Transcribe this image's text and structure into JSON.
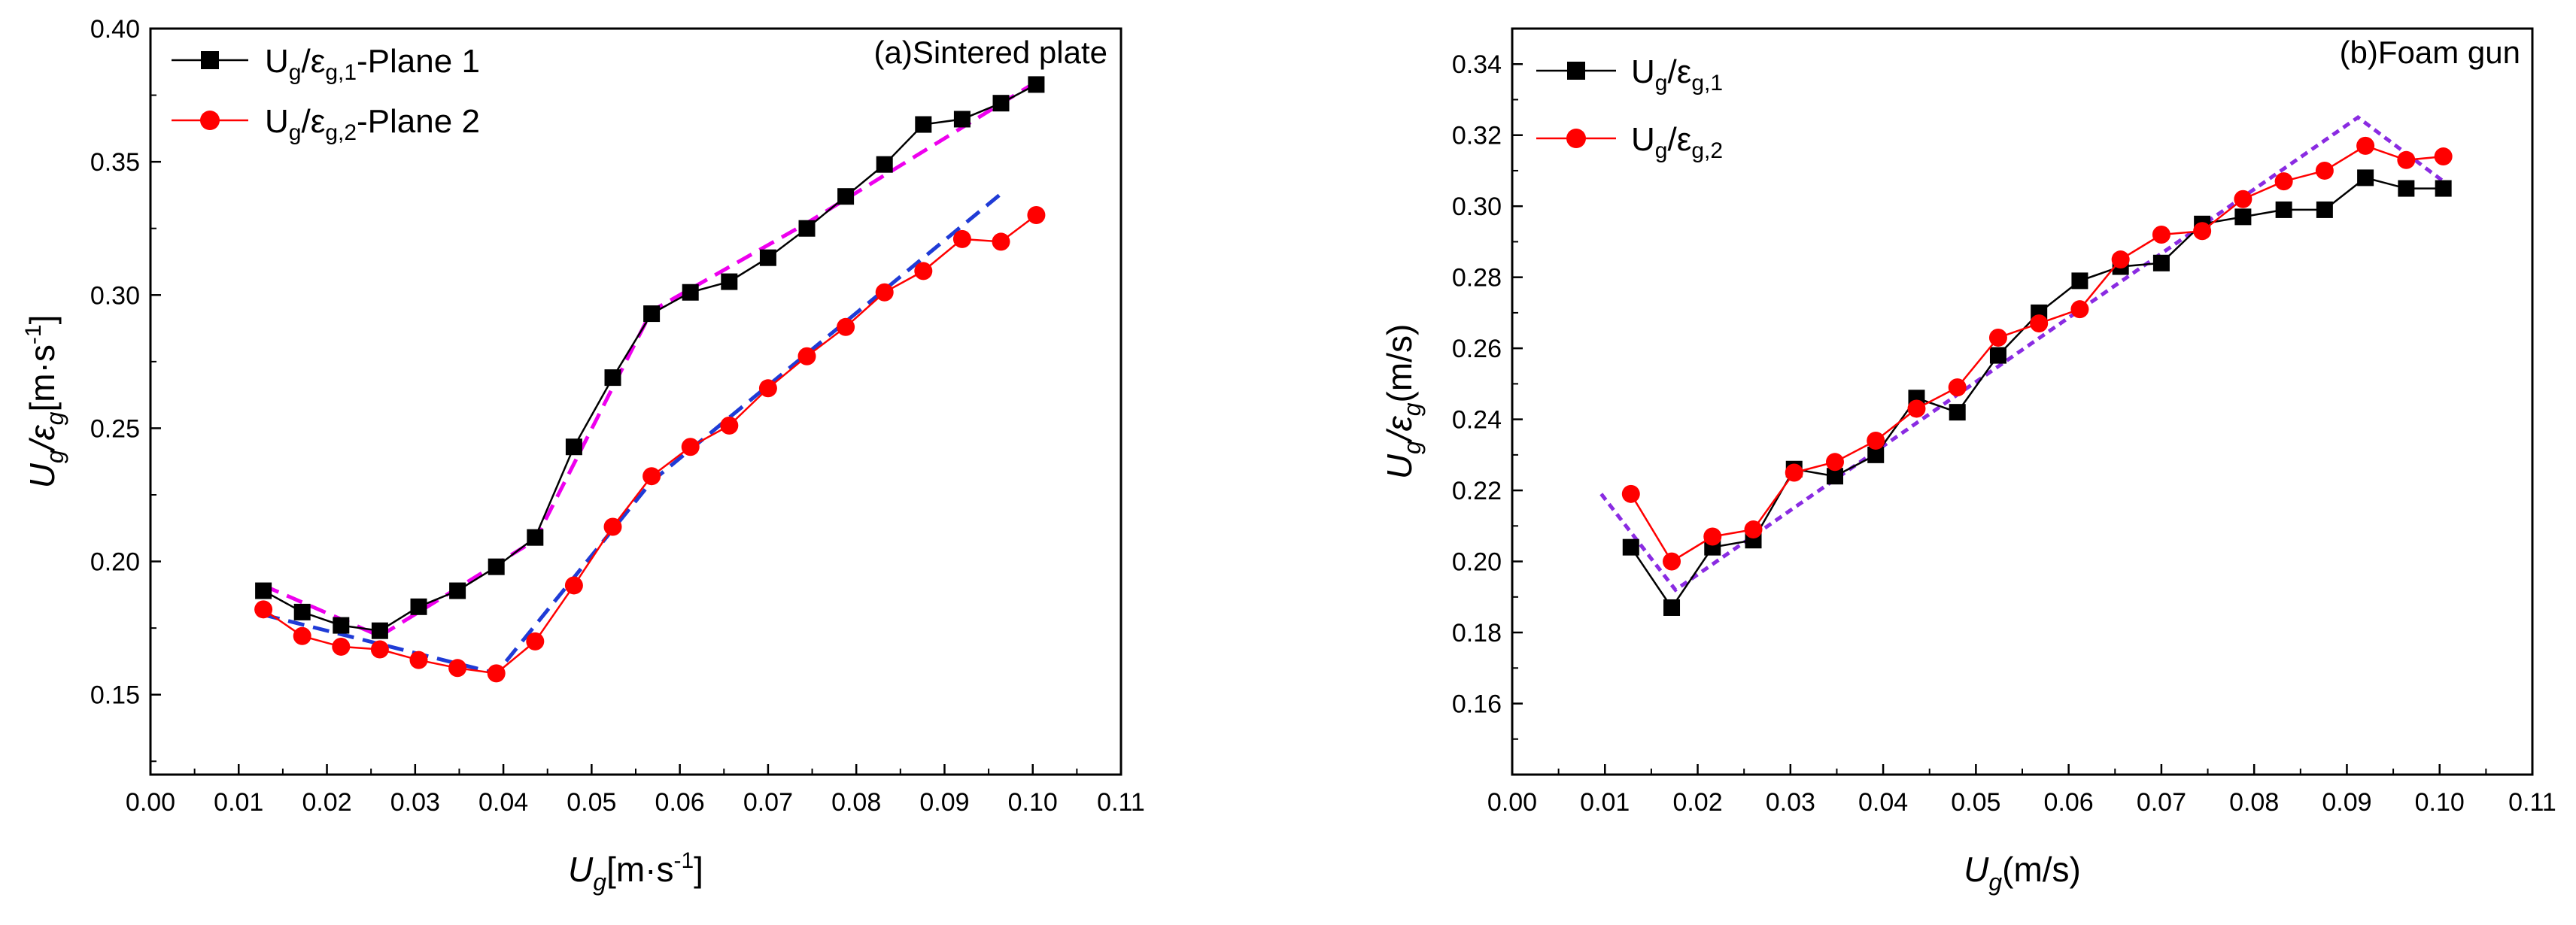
{
  "chart_data": [
    {
      "type": "line",
      "title": "(a)Sintered plate",
      "xlabel": "Ug[m·s⁻¹]",
      "ylabel": "Ug/εg[m·s⁻¹]",
      "xlim": [
        0.0,
        0.11
      ],
      "ylim": [
        0.12,
        0.4
      ],
      "xticks": [
        "0.00",
        "0.01",
        "0.02",
        "0.03",
        "0.04",
        "0.05",
        "0.06",
        "0.07",
        "0.08",
        "0.09",
        "0.10",
        "0.11"
      ],
      "yticks": [
        "0.15",
        "0.20",
        "0.25",
        "0.30",
        "0.35",
        "0.40"
      ],
      "legend_position": "top-left",
      "series": [
        {
          "name": "Ug/εg,1-Plane 1",
          "legend": {
            "main": "U",
            "sub1": "g",
            "mid": "/ε",
            "sub2": "g,1",
            "tail": "-Plane 1"
          },
          "color": "#000000",
          "marker": "square",
          "x": [
            0.0128,
            0.0172,
            0.0216,
            0.026,
            0.0304,
            0.0348,
            0.0392,
            0.0436,
            0.048,
            0.0524,
            0.0568,
            0.0612,
            0.0656,
            0.07,
            0.0744,
            0.0788,
            0.0832,
            0.0876,
            0.092,
            0.0964,
            0.1004
          ],
          "y": [
            0.189,
            0.181,
            0.176,
            0.174,
            0.183,
            0.189,
            0.198,
            0.209,
            0.243,
            0.269,
            0.293,
            0.301,
            0.305,
            0.314,
            0.325,
            0.337,
            0.349,
            0.364,
            0.366,
            0.372,
            0.379
          ]
        },
        {
          "name": "Ug/εg,2-Plane 2",
          "legend": {
            "main": "U",
            "sub1": "g",
            "mid": "/ε",
            "sub2": "g,2",
            "tail": "-Plane 2"
          },
          "color": "#ff0000",
          "marker": "circle",
          "x": [
            0.0128,
            0.0172,
            0.0216,
            0.026,
            0.0304,
            0.0348,
            0.0392,
            0.0436,
            0.048,
            0.0524,
            0.0568,
            0.0612,
            0.0656,
            0.07,
            0.0744,
            0.0788,
            0.0832,
            0.0876,
            0.092,
            0.0964,
            0.1004
          ],
          "y": [
            0.182,
            0.172,
            0.168,
            0.167,
            0.163,
            0.16,
            0.158,
            0.17,
            0.191,
            0.213,
            0.232,
            0.243,
            0.251,
            0.265,
            0.277,
            0.288,
            0.301,
            0.309,
            0.321,
            0.32,
            0.33
          ]
        }
      ],
      "fit_lines": [
        {
          "name": "fit-plane-1",
          "color": "#ee00ee",
          "points": [
            [
              0.0128,
              0.191
            ],
            [
              0.026,
              0.172
            ],
            [
              0.0436,
              0.208
            ],
            [
              0.0568,
              0.294
            ],
            [
              0.0744,
              0.327
            ],
            [
              0.1004,
              0.38
            ]
          ]
        },
        {
          "name": "fit-plane-2",
          "color": "#1f3bd6",
          "points": [
            [
              0.0128,
              0.18
            ],
            [
              0.0392,
              0.158
            ],
            [
              0.0568,
              0.23
            ],
            [
              0.0964,
              0.338
            ]
          ]
        }
      ]
    },
    {
      "type": "line",
      "title": "(b)Foam gun",
      "xlabel": "Ug(m/s)",
      "ylabel": "Ug/εg(m/s)",
      "xlim": [
        0.0,
        0.11
      ],
      "ylim": [
        0.14,
        0.35
      ],
      "xticks": [
        "0.00",
        "0.01",
        "0.02",
        "0.03",
        "0.04",
        "0.05",
        "0.06",
        "0.07",
        "0.08",
        "0.09",
        "0.10",
        "0.11"
      ],
      "yticks": [
        "0.16",
        "0.18",
        "0.20",
        "0.22",
        "0.24",
        "0.26",
        "0.28",
        "0.30",
        "0.32",
        "0.34"
      ],
      "legend_position": "top-left",
      "series": [
        {
          "name": "Ug/εg,1",
          "legend": {
            "main": "U",
            "sub1": "g",
            "mid": "/ε",
            "sub2": "g,1",
            "tail": ""
          },
          "color": "#000000",
          "marker": "square",
          "x": [
            0.0128,
            0.0172,
            0.0216,
            0.026,
            0.0304,
            0.0348,
            0.0392,
            0.0436,
            0.048,
            0.0524,
            0.0568,
            0.0612,
            0.0656,
            0.07,
            0.0744,
            0.0788,
            0.0832,
            0.0876,
            0.092,
            0.0964,
            0.1004
          ],
          "y": [
            0.204,
            0.187,
            0.204,
            0.206,
            0.226,
            0.224,
            0.23,
            0.246,
            0.242,
            0.258,
            0.27,
            0.279,
            0.283,
            0.284,
            0.295,
            0.297,
            0.299,
            0.299,
            0.308,
            0.305,
            0.305
          ]
        },
        {
          "name": "Ug/εg,2",
          "legend": {
            "main": "U",
            "sub1": "g",
            "mid": "/ε",
            "sub2": "g,2",
            "tail": ""
          },
          "color": "#ff0000",
          "marker": "circle",
          "x": [
            0.0128,
            0.0172,
            0.0216,
            0.026,
            0.0304,
            0.0348,
            0.0392,
            0.0436,
            0.048,
            0.0524,
            0.0568,
            0.0612,
            0.0656,
            0.07,
            0.0744,
            0.0788,
            0.0832,
            0.0876,
            0.092,
            0.0964,
            0.1004
          ],
          "y": [
            0.219,
            0.2,
            0.207,
            0.209,
            0.225,
            0.228,
            0.234,
            0.243,
            0.249,
            0.263,
            0.267,
            0.271,
            0.285,
            0.292,
            0.293,
            0.302,
            0.307,
            0.31,
            0.317,
            0.313,
            0.314
          ]
        }
      ],
      "fit_lines": [
        {
          "name": "fit-foam-gun",
          "color": "#8a2be2",
          "points": [
            [
              0.0096,
              0.219
            ],
            [
              0.0176,
              0.192
            ],
            [
              0.0912,
              0.325
            ],
            [
              0.1004,
              0.307
            ]
          ]
        }
      ]
    }
  ]
}
